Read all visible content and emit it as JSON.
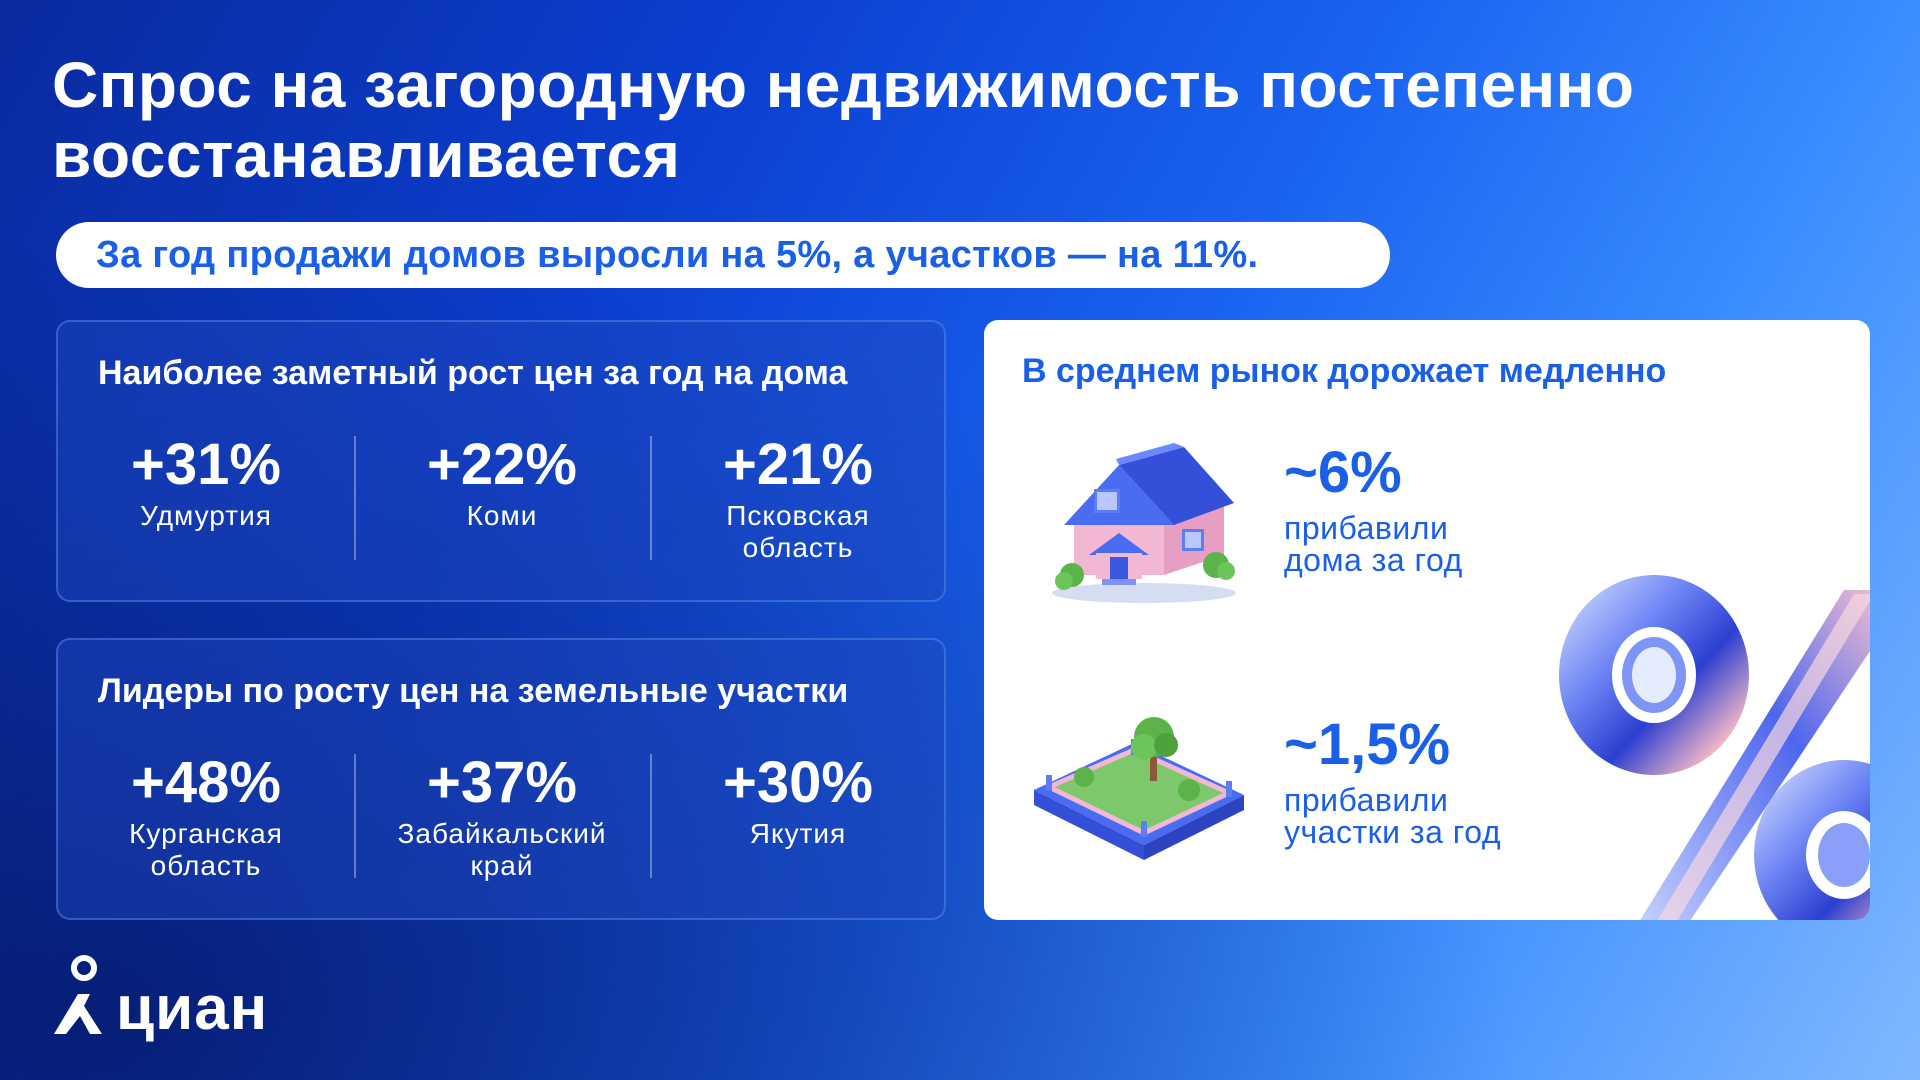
{
  "title": {
    "line1": "Спрос на загородную недвижимость постепенно",
    "line2": "восстанавливается"
  },
  "subtitle": "За год продажи домов выросли на 5%, а участков — на 11%.",
  "houses_panel": {
    "title": "Наиболее заметный рост цен за год на дома",
    "stats": [
      {
        "value": "+31%",
        "label_line1": "Удмуртия",
        "label_line2": ""
      },
      {
        "value": "+22%",
        "label_line1": "Коми",
        "label_line2": ""
      },
      {
        "value": "+21%",
        "label_line1": "Псковская",
        "label_line2": "область"
      }
    ]
  },
  "land_panel": {
    "title": "Лидеры по росту цен на земельные участки",
    "stats": [
      {
        "value": "+48%",
        "label_line1": "Курганская",
        "label_line2": "область"
      },
      {
        "value": "+37%",
        "label_line1": "Забайкальский",
        "label_line2": "край"
      },
      {
        "value": "+30%",
        "label_line1": "Якутия",
        "label_line2": ""
      }
    ]
  },
  "market_panel": {
    "title": "В среднем рынок дорожает медленно",
    "houses": {
      "value": "~6%",
      "label_line1": "прибавили",
      "label_line2": "дома за год",
      "icon": "house-icon"
    },
    "land": {
      "value": "~1,5%",
      "label_line1": "прибавили",
      "label_line2": "участки за год",
      "icon": "land-plot-icon"
    },
    "decor_icon": "percent-icon"
  },
  "logo": {
    "text": "циан",
    "icon": "location-pin-logo-icon"
  },
  "colors": {
    "accent_blue": "#1a5fe8",
    "bg_dark": "#0a2a9e",
    "bg_light": "#7fb8ff",
    "white": "#ffffff"
  }
}
